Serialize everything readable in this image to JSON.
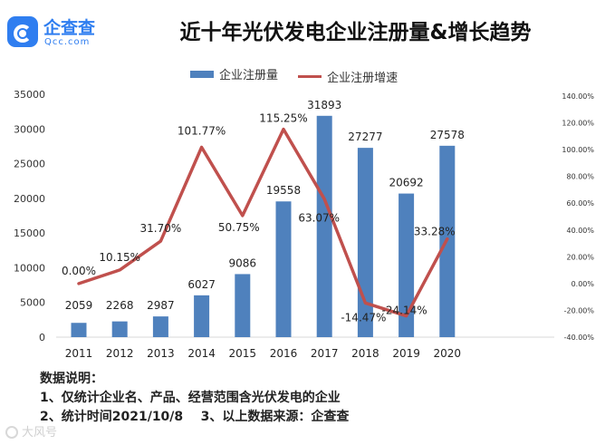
{
  "brand": {
    "name": "企查查",
    "sub": "Qcc.com"
  },
  "header": {
    "title": "近十年光伏发电企业注册量&增长趋势"
  },
  "legend": {
    "bar_label": "企业注册量",
    "line_label": "企业注册增速"
  },
  "colors": {
    "bar": "#4f81bd",
    "line": "#c0504d"
  },
  "chart_data": {
    "type": "bar",
    "categories": [
      "2011",
      "2012",
      "2013",
      "2014",
      "2015",
      "2016",
      "2017",
      "2018",
      "2019",
      "2020"
    ],
    "series": [
      {
        "name": "企业注册量",
        "type": "bar",
        "axis": "left",
        "values": [
          2059,
          2268,
          2987,
          6027,
          9086,
          19558,
          31893,
          27277,
          20692,
          27578
        ],
        "labels": [
          "2059",
          "2268",
          "2987",
          "6027",
          "9086",
          "19558",
          "31893",
          "27277",
          "20692",
          "27578"
        ]
      },
      {
        "name": "企业注册增速",
        "type": "line",
        "axis": "right",
        "values": [
          0.0,
          10.15,
          31.7,
          101.77,
          50.75,
          115.25,
          63.07,
          -14.47,
          -24.14,
          33.28
        ],
        "labels": [
          "0.00%",
          "10.15%",
          "31.70%",
          "101.77%",
          "50.75%",
          "115.25%",
          "63.07%",
          "-14.47%",
          "-24.14%",
          "33.28%"
        ]
      }
    ],
    "y_left": {
      "min": 0,
      "max": 35000,
      "ticks": [
        "0",
        "5000",
        "10000",
        "15000",
        "20000",
        "25000",
        "30000",
        "35000"
      ]
    },
    "y_right": {
      "min": -40,
      "max": 140,
      "ticks": [
        "-40.00%",
        "-20.00%",
        "0.00%",
        "20.00%",
        "40.00%",
        "60.00%",
        "80.00%",
        "100.00%",
        "120.00%",
        "140.00%"
      ]
    },
    "legend_position": "top",
    "grid": false
  },
  "notes": {
    "heading": "数据说明：",
    "line1": "1、仅统计企业名、产品、经营范围含光伏发电的企业",
    "line2": "2、统计时间2021/10/8    3、以上数据来源：企查查"
  },
  "watermark": {
    "text": "大风号"
  }
}
